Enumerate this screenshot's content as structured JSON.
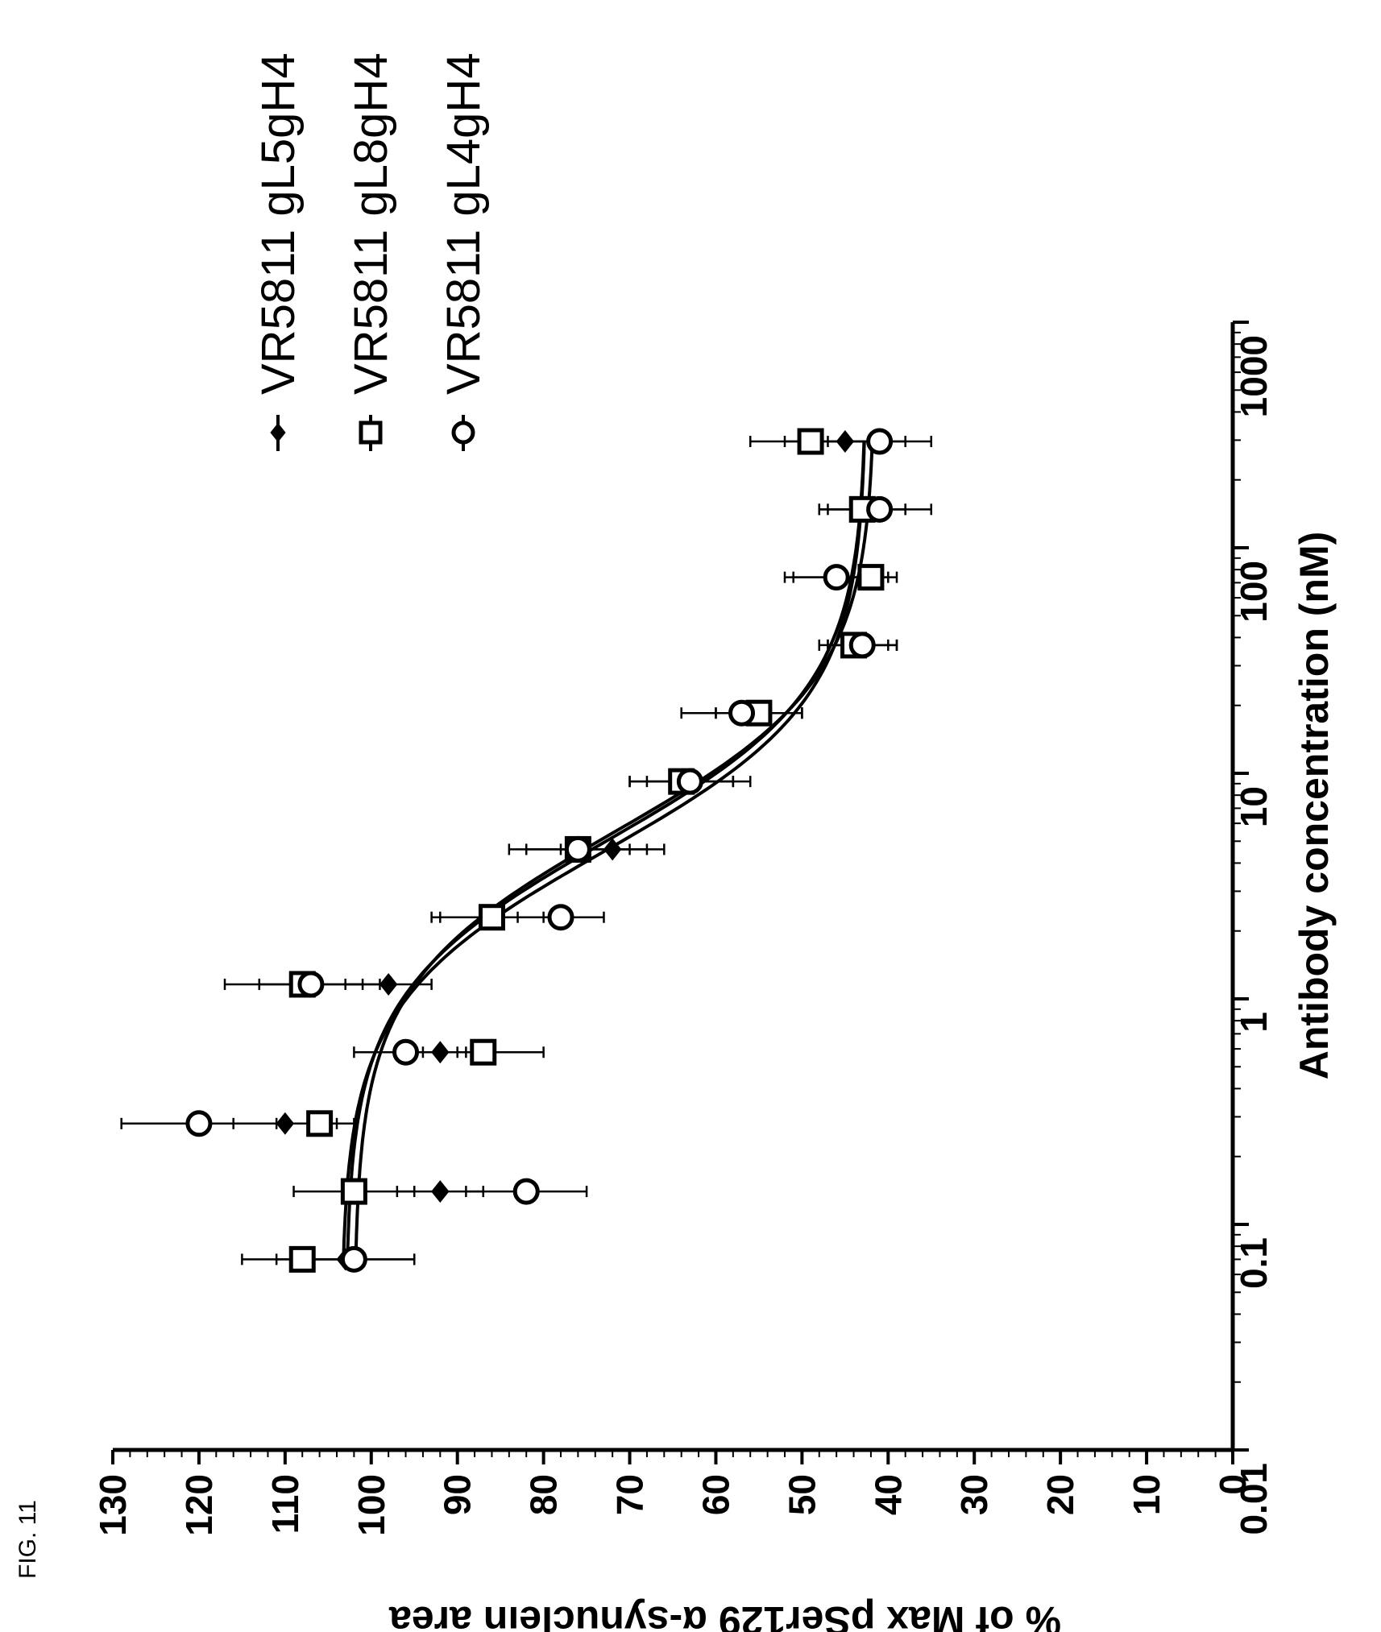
{
  "figure_label": "FIG. 11",
  "chart_data": {
    "type": "scatter",
    "title": "",
    "xlabel": "Antibody concentration (nM)",
    "ylabel": "% of Max pSer129 α-synuclein area",
    "xscale": "log",
    "xlim": [
      0.01,
      1000
    ],
    "ylim": [
      0,
      130
    ],
    "x_ticks": [
      "0.01",
      "0.1",
      "1",
      "10",
      "100",
      "1000"
    ],
    "y_ticks": [
      "0",
      "10",
      "20",
      "30",
      "40",
      "50",
      "60",
      "70",
      "80",
      "90",
      "100",
      "110",
      "120",
      "130"
    ],
    "orientation": "rotated 90° counter-clockwise",
    "legend_position": "top-right",
    "series": [
      {
        "name": "VR5811 gL5gH4",
        "marker": "filled-diamond",
        "x": [
          0.07,
          0.14,
          0.28,
          0.58,
          1.16,
          2.3,
          4.6,
          9.2,
          18.5,
          37,
          74,
          148,
          296
        ],
        "y": [
          103,
          92,
          110,
          92,
          98,
          86,
          72,
          63,
          55,
          43,
          46,
          43,
          45
        ],
        "err": [
          8,
          5,
          6,
          3,
          5,
          7,
          6,
          7,
          5,
          4,
          6,
          5,
          7
        ],
        "fit": {
          "top": 103.5,
          "bottom": 42.5,
          "ec50": 4.5,
          "hill": 1.3
        }
      },
      {
        "name": "VR5811 gL8gH4",
        "marker": "open-square",
        "x": [
          0.07,
          0.14,
          0.28,
          0.58,
          1.16,
          2.3,
          4.6,
          9.2,
          18.5,
          37,
          74,
          148,
          296
        ],
        "y": [
          108,
          102,
          106,
          87,
          108,
          86,
          76,
          64,
          55,
          44,
          42,
          43,
          49
        ],
        "err": [
          7,
          7,
          4,
          7,
          9,
          6,
          8,
          6,
          5,
          4,
          3,
          5,
          7
        ],
        "fit": {
          "top": 103,
          "bottom": 42.5,
          "ec50": 5.0,
          "hill": 1.3
        }
      },
      {
        "name": "VR5811 gL4gH4",
        "marker": "open-circle",
        "x": [
          0.07,
          0.14,
          0.28,
          0.58,
          1.16,
          2.3,
          4.6,
          9.2,
          18.5,
          37,
          74,
          148,
          296
        ],
        "y": [
          102,
          82,
          120,
          96,
          107,
          78,
          76,
          63,
          57,
          43,
          46,
          41,
          41
        ],
        "err": [
          7,
          7,
          9,
          6,
          6,
          5,
          6,
          5,
          7,
          4,
          5,
          6,
          6
        ],
        "fit": {
          "top": 102,
          "bottom": 41.5,
          "ec50": 5.5,
          "hill": 1.3
        }
      }
    ]
  }
}
